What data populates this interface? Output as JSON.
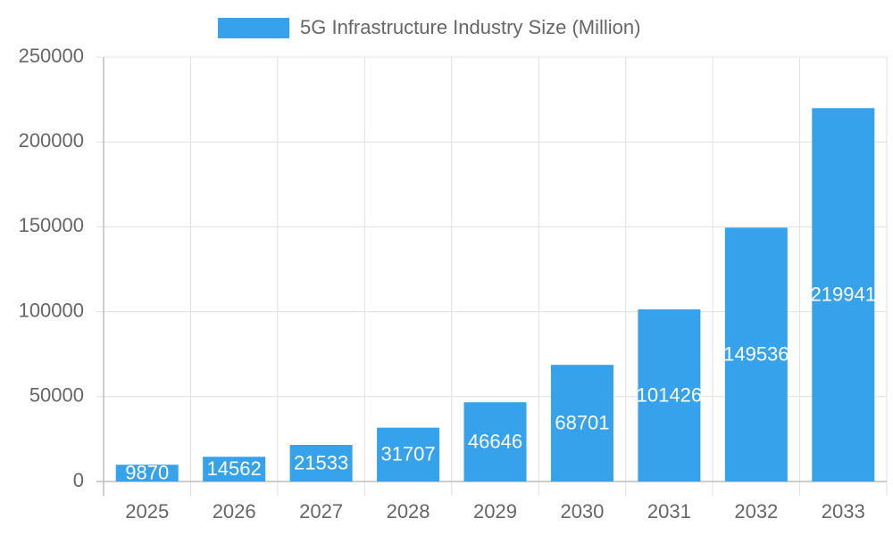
{
  "chart_data": {
    "type": "bar",
    "categories": [
      "2025",
      "2026",
      "2027",
      "2028",
      "2029",
      "2030",
      "2031",
      "2032",
      "2033"
    ],
    "series": [
      {
        "name": "5G Infrastructure Industry Size (Million)",
        "color": "#36a2eb",
        "values": [
          9870,
          14562,
          21533,
          31707,
          46646,
          68701,
          101426,
          149536,
          219941
        ]
      }
    ],
    "ylim": [
      0,
      250000
    ],
    "yticks": [
      0,
      50000,
      100000,
      150000,
      200000,
      250000
    ],
    "grid": true
  }
}
